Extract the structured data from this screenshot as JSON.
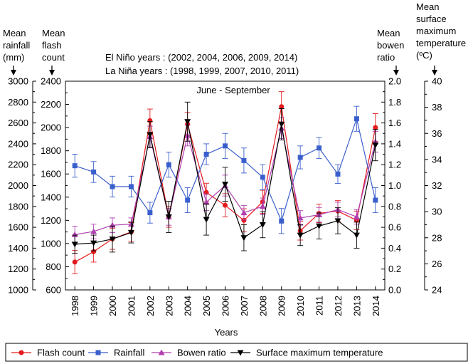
{
  "chart_data": {
    "type": "line",
    "title": "June - September",
    "annotations": [
      "El Niño years : (2002, 2004, 2006, 2009, 2014)",
      "La Niña years : (1998, 1999, 2007, 2010, 2011)"
    ],
    "xlabel": "Years",
    "categories": [
      "1998",
      "1999",
      "2000",
      "2001",
      "2002",
      "2003",
      "2004",
      "2005",
      "2006",
      "2007",
      "2008",
      "2009",
      "2010",
      "2011",
      "2012",
      "2013",
      "2014"
    ],
    "axes": {
      "rainfall": {
        "label": [
          "Mean",
          "rainfall",
          "(mm)"
        ],
        "ylim": [
          1000,
          3000
        ],
        "ticks": [
          "1000",
          "1200",
          "1400",
          "1600",
          "1800",
          "2000",
          "2200",
          "2400",
          "2600",
          "2800",
          "3000"
        ]
      },
      "flash": {
        "label": [
          "Mean",
          "flash",
          "count"
        ],
        "ylim": [
          600,
          2400
        ],
        "ticks": [
          "600",
          "800",
          "1000",
          "1200",
          "1400",
          "1600",
          "1800",
          "2000",
          "2200",
          "2400"
        ]
      },
      "bowen": {
        "label": [
          "Mean",
          "bowen",
          "ratio"
        ],
        "ylim": [
          0.0,
          2.0
        ],
        "ticks": [
          "0.0",
          "0.2",
          "0.4",
          "0.6",
          "0.8",
          "1.0",
          "1.2",
          "1.4",
          "1.6",
          "1.8",
          "2.0"
        ]
      },
      "temperature": {
        "label": [
          "Mean",
          "surface",
          "maximum",
          "temperature",
          "(ºC)"
        ],
        "ylim": [
          24,
          40
        ],
        "ticks": [
          "24",
          "26",
          "28",
          "30",
          "32",
          "34",
          "36",
          "38",
          "40"
        ]
      }
    },
    "series": [
      {
        "name": "Flash count",
        "axis": "flash",
        "color": "#e41a1c",
        "marker": "circle",
        "values": [
          840,
          930,
          1040,
          1100,
          2060,
          1230,
          2030,
          1440,
          1330,
          1200,
          1360,
          2180,
          1110,
          1260,
          1280,
          1200,
          2000
        ],
        "errors": [
          100,
          90,
          90,
          80,
          100,
          90,
          100,
          80,
          100,
          100,
          100,
          130,
          80,
          80,
          90,
          80,
          120
        ]
      },
      {
        "name": "Rainfall",
        "axis": "rainfall",
        "color": "#3a5fcd",
        "marker": "square",
        "values": [
          2190,
          2130,
          1990,
          1990,
          1740,
          2200,
          1860,
          2300,
          2380,
          2240,
          2080,
          1660,
          2270,
          2360,
          2110,
          2640,
          1860
        ],
        "errors": [
          110,
          100,
          100,
          100,
          100,
          120,
          120,
          100,
          120,
          120,
          120,
          120,
          110,
          100,
          90,
          120,
          120
        ]
      },
      {
        "name": "Bowen ratio",
        "axis": "bowen",
        "color": "#b040b0",
        "marker": "triangle-up",
        "values": [
          0.53,
          0.56,
          0.62,
          0.63,
          1.47,
          0.7,
          1.48,
          0.84,
          1.0,
          0.74,
          0.8,
          1.55,
          0.69,
          0.72,
          0.77,
          0.7,
          1.42
        ],
        "errors": [
          0.08,
          0.07,
          0.07,
          0.06,
          0.1,
          0.08,
          0.1,
          0.08,
          0.1,
          0.07,
          0.08,
          0.1,
          0.07,
          0.07,
          0.07,
          0.07,
          0.1
        ]
      },
      {
        "name": "Surface maximum temperature",
        "axis": "temperature",
        "color": "#000000",
        "marker": "triangle-down",
        "values": [
          27.5,
          27.6,
          27.9,
          28.4,
          35.9,
          29.6,
          36.9,
          29.4,
          32.1,
          28.0,
          29.0,
          36.7,
          28.2,
          28.9,
          29.3,
          28.2,
          35.1
        ],
        "errors": [
          0.7,
          0.6,
          1.0,
          0.8,
          1.0,
          1.2,
          1.5,
          1.2,
          1.3,
          1.0,
          1.0,
          1.2,
          0.8,
          1.0,
          1.0,
          1.0,
          1.2
        ]
      }
    ],
    "legend_position": "bottom",
    "grid": false
  }
}
